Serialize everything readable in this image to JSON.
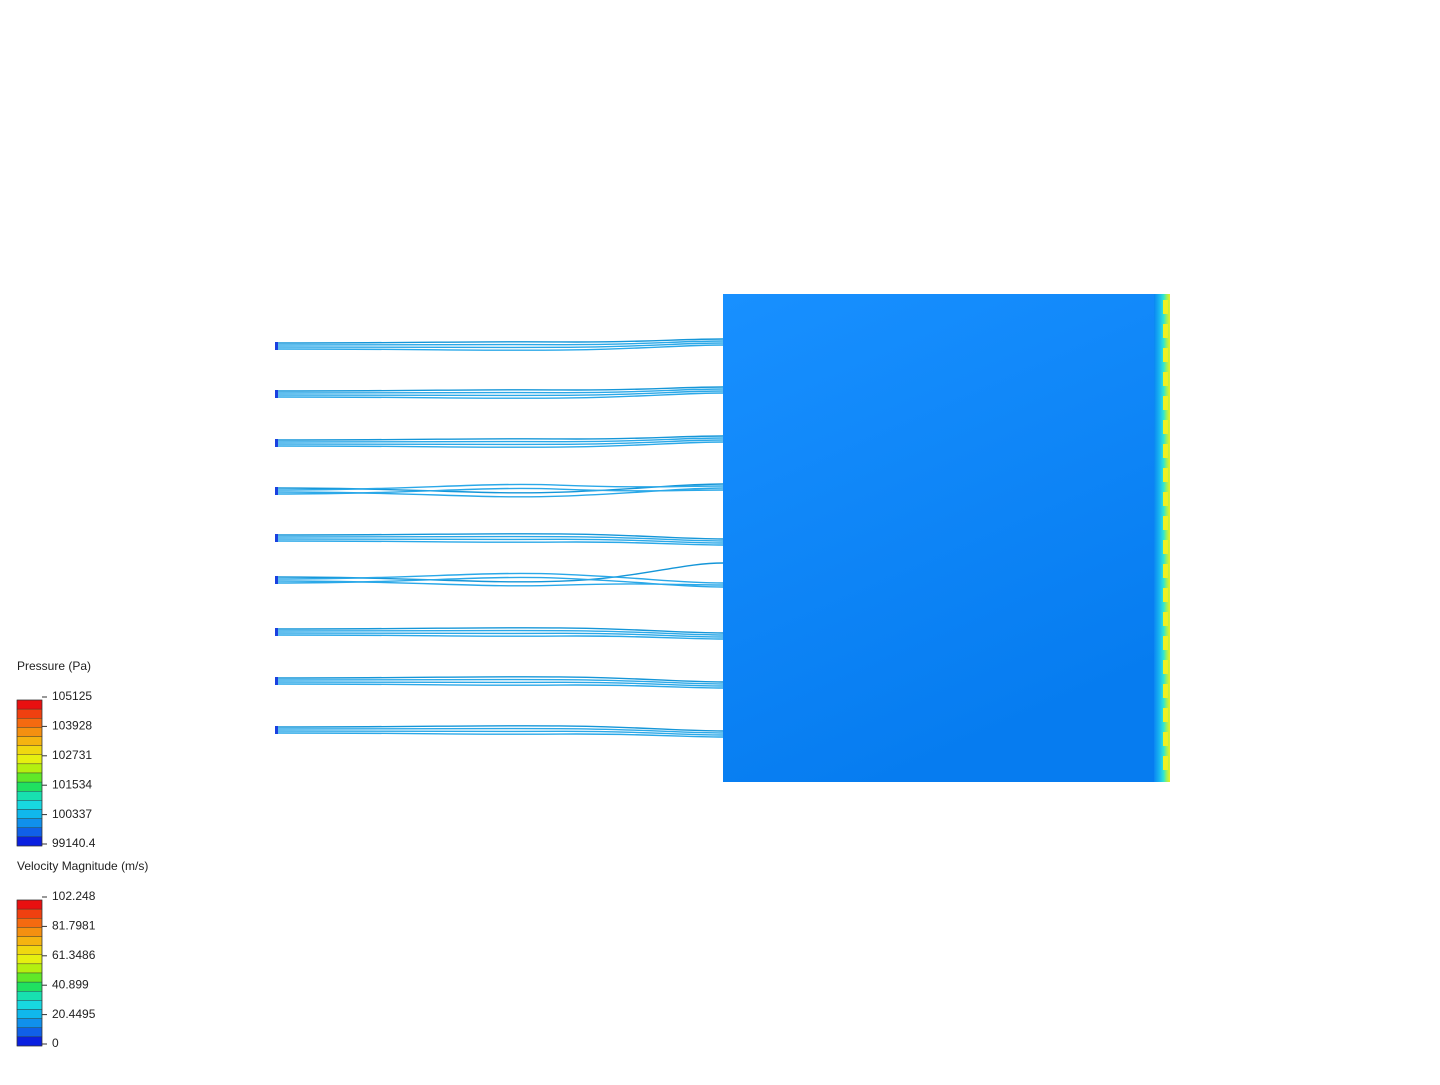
{
  "legends": [
    {
      "title": "Pressure (Pa)",
      "ticks": [
        "105125",
        "103928",
        "102731",
        "101534",
        "100337",
        "99140.4"
      ]
    },
    {
      "title": "Velocity Magnitude (m/s)",
      "ticks": [
        "102.248",
        "81.7981",
        "61.3486",
        "40.899",
        "20.4495",
        "0"
      ]
    }
  ]
}
